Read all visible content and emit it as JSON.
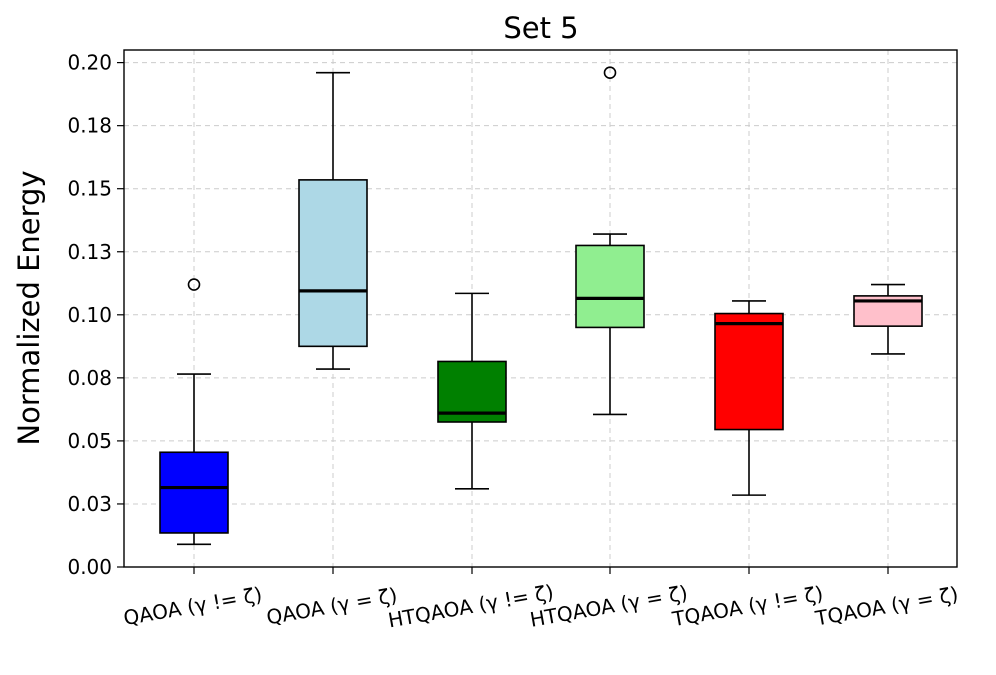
{
  "chart_data": {
    "type": "box",
    "title": "Set 5",
    "xlabel": "",
    "ylabel": "Normalized Energy",
    "ylim": [
      0.0,
      0.205
    ],
    "yticks": [
      0.0,
      0.025,
      0.05,
      0.075,
      0.1,
      0.125,
      0.15,
      0.175,
      0.2
    ],
    "ytick_labels": [
      "0.00",
      "0.03",
      "0.05",
      "0.08",
      "0.10",
      "0.13",
      "0.15",
      "0.18",
      "0.20"
    ],
    "grid": true,
    "categories": [
      "QAOA (γ != ζ)",
      "QAOA (γ = ζ)",
      "HTQAOA (γ != ζ)",
      "HTQAOA (γ = ζ)",
      "TQAOA (γ != ζ)",
      "TQAOA (γ = ζ)"
    ],
    "boxes": [
      {
        "name": "QAOA (γ != ζ)",
        "whisker_low": 0.009,
        "q1": 0.0135,
        "median": 0.0315,
        "q3": 0.0455,
        "whisker_high": 0.0765,
        "outliers": [
          0.112
        ],
        "color": "#0000ff"
      },
      {
        "name": "QAOA (γ = ζ)",
        "whisker_low": 0.0785,
        "q1": 0.0875,
        "median": 0.1095,
        "q3": 0.1535,
        "whisker_high": 0.196,
        "outliers": [],
        "color": "#add8e6"
      },
      {
        "name": "HTQAOA (γ != ζ)",
        "whisker_low": 0.031,
        "q1": 0.0575,
        "median": 0.061,
        "q3": 0.0815,
        "whisker_high": 0.1085,
        "outliers": [],
        "color": "#008000"
      },
      {
        "name": "HTQAOA (γ = ζ)",
        "whisker_low": 0.0605,
        "q1": 0.095,
        "median": 0.1065,
        "q3": 0.1275,
        "whisker_high": 0.132,
        "outliers": [
          0.196
        ],
        "color": "#90ee90"
      },
      {
        "name": "TQAOA (γ != ζ)",
        "whisker_low": 0.0285,
        "q1": 0.0545,
        "median": 0.0965,
        "q3": 0.1005,
        "whisker_high": 0.1055,
        "outliers": [],
        "color": "#ff0000"
      },
      {
        "name": "TQAOA (γ = ζ)",
        "whisker_low": 0.0845,
        "q1": 0.0955,
        "median": 0.1055,
        "q3": 0.1075,
        "whisker_high": 0.112,
        "outliers": [],
        "color": "#ffc0cb"
      }
    ]
  }
}
